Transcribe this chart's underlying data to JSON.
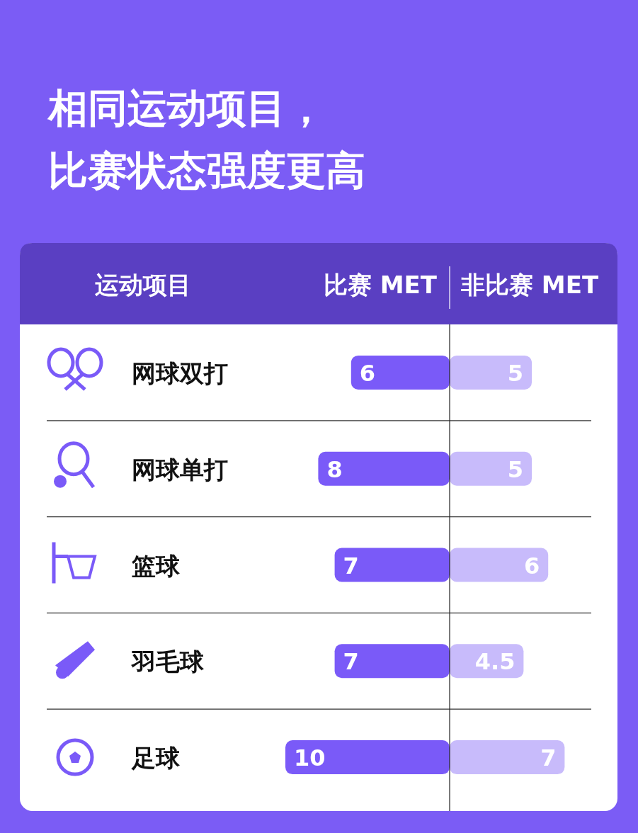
{
  "chart_data": [
    {
      "type": "bar",
      "orientation": "horizontal",
      "title": "相同运动项目，",
      "subtitle": "比赛状态强度更高",
      "ylabel": "运动项目",
      "categories": [
        "网球双打",
        "网球单打",
        "篮球",
        "羽毛球",
        "足球"
      ],
      "tick_labels": "y",
      "series": [
        {
          "name": "比赛 MET",
          "color": "#7a5af8",
          "values": [
            6,
            8,
            7,
            7,
            10
          ]
        }
      ],
      "data_labels": true,
      "legend": "top"
    },
    {
      "type": "bar",
      "orientation": "horizontal",
      "tick_labels": false,
      "series": [
        {
          "name": "非比赛 MET",
          "color": "#c8bbfb",
          "values": [
            5,
            5,
            6,
            4.5,
            7
          ]
        }
      ],
      "data_labels": true,
      "legend": "top"
    }
  ]
}
